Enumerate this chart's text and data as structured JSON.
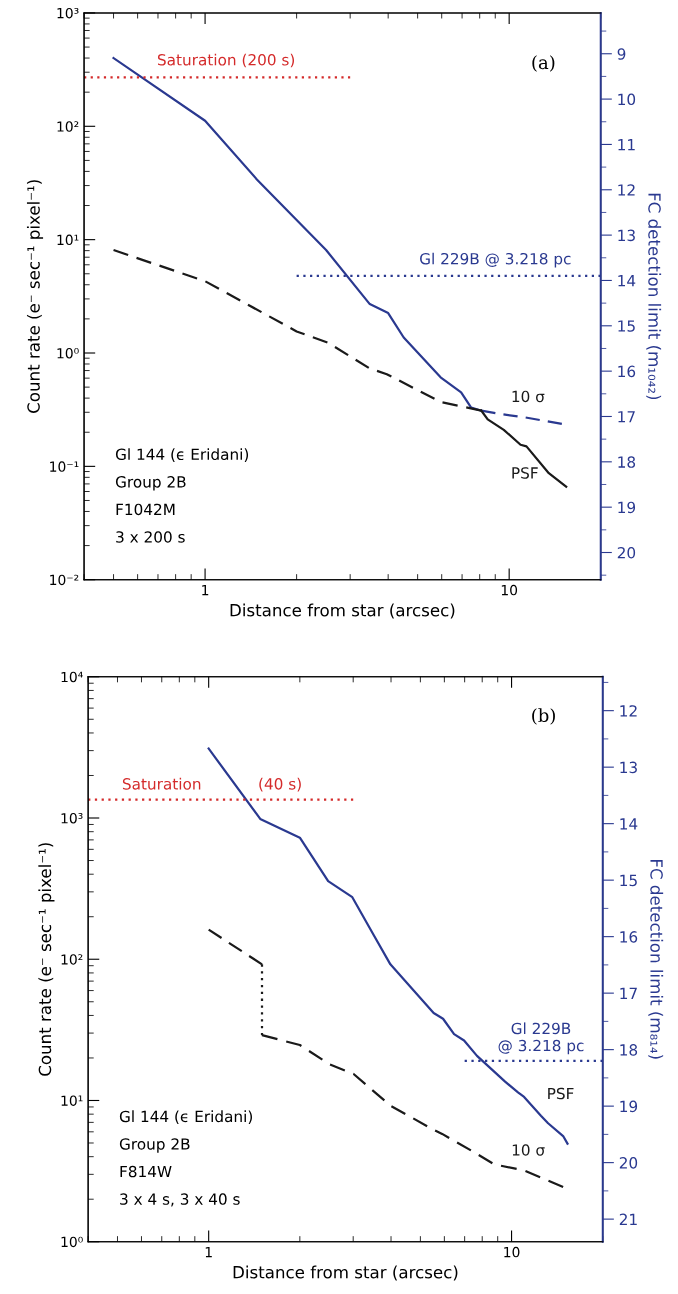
{
  "chart_data": [
    {
      "type": "line",
      "log": "xy",
      "xlabel": "Distance from star (arcsec)",
      "ylabel": "Count rate (e⁻ sec⁻¹ pixel⁻¹)",
      "y2label": "FC detection limit (m₁₀₄₂)",
      "xlim": [
        0.4,
        20
      ],
      "xticks": [
        1,
        10
      ],
      "ylim": [
        0.01,
        1000
      ],
      "yticks": [
        {
          "value": 0.01,
          "label": "10⁻²"
        },
        {
          "value": 0.1,
          "label": "10⁻¹"
        },
        {
          "value": 1,
          "label": "10⁰"
        },
        {
          "value": 10,
          "label": "10¹"
        },
        {
          "value": 100,
          "label": "10²"
        },
        {
          "value": 1000,
          "label": "10³"
        }
      ],
      "y2lim": [
        20.6,
        8.1
      ],
      "y2ticks": [
        9,
        10,
        11,
        12,
        13,
        14,
        15,
        16,
        17,
        18,
        19,
        20
      ],
      "series": [
        {
          "color": "#2a3990",
          "line_style": "solid",
          "x": [
            0.5,
            1,
            1.48,
            2.5,
            3.48,
            4.0,
            4.5,
            5.95,
            6.95,
            7.5,
            8.1
          ],
          "values": [
            400,
            112,
            34,
            8.1,
            2.7,
            2.25,
            1.37,
            0.61,
            0.45,
            0.33,
            0.31
          ]
        },
        {
          "color": "#2a3990",
          "line_style": "dashed",
          "x": [
            8.1,
            9.3,
            11.3,
            14.9
          ],
          "values": [
            0.31,
            0.29,
            0.27,
            0.237
          ]
        },
        {
          "color": "#1a1a1a",
          "line_style": "dashed",
          "x": [
            0.5,
            1,
            2.0,
            2.54,
            3.48,
            3.96,
            5.95,
            8.1
          ],
          "values": [
            8.1,
            4.3,
            1.55,
            1.23,
            0.73,
            0.65,
            0.37,
            0.31
          ]
        },
        {
          "color": "#1a1a1a",
          "line_style": "solid",
          "x": [
            8.1,
            8.5,
            9.6,
            10.9,
            11.4,
            13.5,
            15.4
          ],
          "values": [
            0.31,
            0.26,
            0.21,
            0.155,
            0.15,
            0.087,
            0.066
          ]
        },
        {
          "color": "#d42a2a",
          "line_style": "dotted",
          "x": [
            0.4,
            3.0
          ],
          "values": [
            270,
            270
          ]
        },
        {
          "color": "#2a3990",
          "line_style": "dotted",
          "axis": "y2",
          "x": [
            2.0,
            20
          ],
          "values": [
            13.9,
            13.9
          ]
        }
      ],
      "annotations": [
        "(a)",
        "Gl 144 (ϵ Eridani)\nGroup 2B\nF1042M\n3 x 200 s",
        "Saturation (200 s)",
        "Gl 229B @ 3.218 pc",
        "10 σ",
        "PSF"
      ]
    },
    {
      "type": "line",
      "log": "xy",
      "xlabel": "Distance from star (arcsec)",
      "ylabel": "Count rate (e⁻ sec⁻¹ pixel⁻¹)",
      "y2label": "FC detection limit (m₈₁₄)",
      "xlim": [
        0.4,
        20
      ],
      "xticks": [
        1,
        10
      ],
      "ylim": [
        1,
        10000
      ],
      "yticks": [
        {
          "value": 1,
          "label": "10⁰"
        },
        {
          "value": 10,
          "label": "10¹"
        },
        {
          "value": 100,
          "label": "10²"
        },
        {
          "value": 1000,
          "label": "10³"
        },
        {
          "value": 10000,
          "label": "10⁴"
        }
      ],
      "y2lim": [
        21.4,
        11.4
      ],
      "y2ticks": [
        12,
        13,
        14,
        15,
        16,
        17,
        18,
        19,
        20,
        21
      ],
      "series": [
        {
          "color": "#2a3990",
          "line_style": "solid",
          "x": [
            1,
            1.48,
            2.0,
            2.48,
            2.98,
            3.49,
            3.98,
            5.53,
            5.94,
            6.46,
            6.97,
            7.69,
            9.52,
            10.5,
            11.0,
            12.5,
            13.2,
            14.8,
            15.3
          ],
          "values": [
            3100,
            985,
            726,
            357,
            275,
            151,
            92,
            41.6,
            37.9,
            29.5,
            26.6,
            20.7,
            13.6,
            11.4,
            10.6,
            7.8,
            6.9,
            5.6,
            4.95
          ]
        },
        {
          "color": "#1a1a1a",
          "line_style": "dashed",
          "x": [
            1,
            1.5
          ],
          "values": [
            162,
            92
          ]
        },
        {
          "color": "#1a1a1a",
          "line_style": "dotted",
          "x": [
            1.5,
            1.5
          ],
          "values": [
            92,
            29
          ]
        },
        {
          "color": "#1a1a1a",
          "line_style": "dashed",
          "x": [
            1.5,
            2.0,
            2.51,
            3.01,
            3.98,
            5.53,
            5.9,
            7.44,
            8.77,
            11.0,
            14.8
          ],
          "values": [
            29,
            24.7,
            18,
            15.4,
            9.2,
            6.2,
            5.8,
            4.36,
            3.53,
            3.2,
            2.44
          ]
        },
        {
          "color": "#d42a2a",
          "line_style": "dotted",
          "x": [
            0.4,
            3.0
          ],
          "values": [
            1350,
            1350
          ]
        },
        {
          "color": "#2a3990",
          "line_style": "dotted",
          "axis": "y2",
          "x": [
            7.0,
            20
          ],
          "values": [
            18.2,
            18.2
          ]
        }
      ],
      "annotations": [
        "(b)",
        "Gl 144 (ϵ Eridani)\nGroup 2B\nF814W\n3 x 4 s, 3 x 40 s",
        "Saturation",
        "(40 s)",
        "Gl 229B\n@ 3.218 pc",
        "PSF",
        "10 σ"
      ]
    }
  ]
}
